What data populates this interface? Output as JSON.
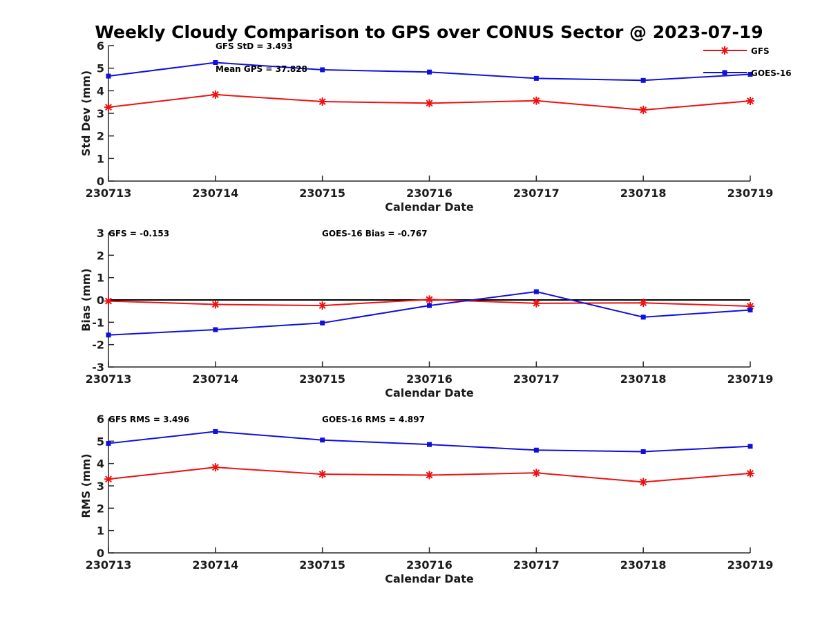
{
  "chart_data": {
    "type": "line",
    "title": "Weekly Cloudy Comparison to GPS over CONUS Sector @ 2023-07-19",
    "colors": {
      "GFS": "#ee1111",
      "GOES-16": "#1010dd"
    },
    "legend": {
      "placement": "top-right",
      "entries": [
        "GFS",
        "GOES-16"
      ]
    },
    "categories": [
      "230713",
      "230714",
      "230715",
      "230716",
      "230717",
      "230718",
      "230719"
    ],
    "panels": [
      {
        "id": "std",
        "xlabel": "Calendar Date",
        "ylabel": "Std Dev (mm)",
        "ylim": [
          0,
          6
        ],
        "yticks": [
          "0",
          "1",
          "2",
          "3",
          "4",
          "5",
          "6"
        ],
        "zero_line": false,
        "annotations": [
          "GFS StD = 3.493",
          "Mean GPS = 37.828"
        ],
        "series": [
          {
            "name": "GFS",
            "values": [
              3.27,
              3.83,
              3.52,
              3.45,
              3.56,
              3.15,
              3.55
            ]
          },
          {
            "name": "GOES-16",
            "values": [
              4.65,
              5.25,
              4.93,
              4.83,
              4.55,
              4.46,
              4.73
            ]
          }
        ]
      },
      {
        "id": "bias",
        "xlabel": "Calendar Date",
        "ylabel": "Bias (mm)",
        "ylim": [
          -3,
          3
        ],
        "yticks": [
          "-3",
          "-2",
          "-1",
          "0",
          "1",
          "2",
          "3"
        ],
        "zero_line": true,
        "annotations": [
          "GFS = -0.153",
          "GOES-16 Bias  = -0.767"
        ],
        "series": [
          {
            "name": "GFS",
            "values": [
              -0.05,
              -0.2,
              -0.25,
              0.02,
              -0.15,
              -0.13,
              -0.28
            ]
          },
          {
            "name": "GOES-16",
            "values": [
              -1.57,
              -1.33,
              -1.03,
              -0.25,
              0.37,
              -0.77,
              -0.45
            ]
          }
        ]
      },
      {
        "id": "rms",
        "xlabel": "Calendar Date",
        "ylabel": "RMS (mm)",
        "ylim": [
          0,
          6
        ],
        "yticks": [
          "0",
          "1",
          "2",
          "3",
          "4",
          "5",
          "6"
        ],
        "zero_line": false,
        "annotations": [
          "GFS RMS = 3.496",
          "GOES-16 RMS = 4.897"
        ],
        "series": [
          {
            "name": "GFS",
            "values": [
              3.3,
              3.83,
              3.52,
              3.48,
              3.58,
              3.17,
              3.56
            ]
          },
          {
            "name": "GOES-16",
            "values": [
              4.9,
              5.43,
              5.05,
              4.85,
              4.6,
              4.53,
              4.77
            ]
          }
        ]
      }
    ]
  }
}
